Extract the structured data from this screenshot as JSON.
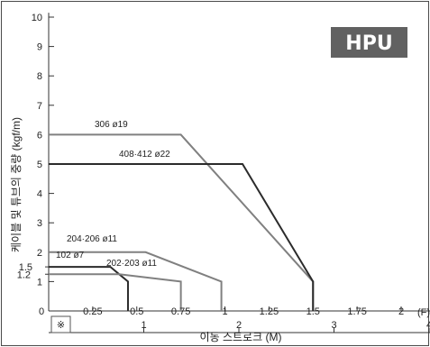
{
  "chart_data": {
    "type": "line",
    "title": "",
    "badge": "HPU",
    "ylabel": "케이블 및 튜브의 중량 (kgf/m)",
    "xlabel": "이동 스트로크 (M)",
    "x_unit_top": "(F)",
    "note_symbol": "※",
    "ylim": [
      0,
      10
    ],
    "xlim": [
      0,
      4.15
    ],
    "y_ticks": [
      "1",
      "2",
      "3",
      "4",
      "5",
      "6",
      "7",
      "8",
      "9",
      "10"
    ],
    "y_side_ticks": [
      "1.5",
      "1.2"
    ],
    "x_ticks_top": [
      "0",
      "0.25",
      "0.5",
      "0.75",
      "1",
      "1.25",
      "1.5",
      "1.75",
      "2",
      "(F)"
    ],
    "x_ticks_bottom": [
      "1",
      "2",
      "3",
      "4"
    ],
    "series": [
      {
        "name": "306 ø19",
        "color": "#808080",
        "points": [
          [
            0,
            6
          ],
          [
            0.75,
            6
          ],
          [
            1.5,
            1
          ],
          [
            1.5,
            0
          ]
        ]
      },
      {
        "name": "408·412 ø22",
        "color": "#2b2b2b",
        "points": [
          [
            0,
            5
          ],
          [
            1.1,
            5
          ],
          [
            1.5,
            1
          ],
          [
            1.5,
            0
          ]
        ]
      },
      {
        "name": "204·206 ø11",
        "color": "#808080",
        "points": [
          [
            0,
            2
          ],
          [
            0.55,
            2
          ],
          [
            0.98,
            1
          ],
          [
            0.98,
            0
          ]
        ]
      },
      {
        "name": "102 ø7",
        "color": "#2b2b2b",
        "points": [
          [
            0,
            1.5
          ],
          [
            0.35,
            1.5
          ],
          [
            0.45,
            1
          ],
          [
            0.45,
            0
          ]
        ]
      },
      {
        "name": "202·203 ø11",
        "color": "#808080",
        "points": [
          [
            0,
            1.25
          ],
          [
            0.4,
            1.25
          ],
          [
            0.75,
            1
          ],
          [
            0.75,
            0
          ]
        ]
      }
    ],
    "colors": {
      "badge_bg": "#616161",
      "frame": "#4a4a4a"
    }
  }
}
